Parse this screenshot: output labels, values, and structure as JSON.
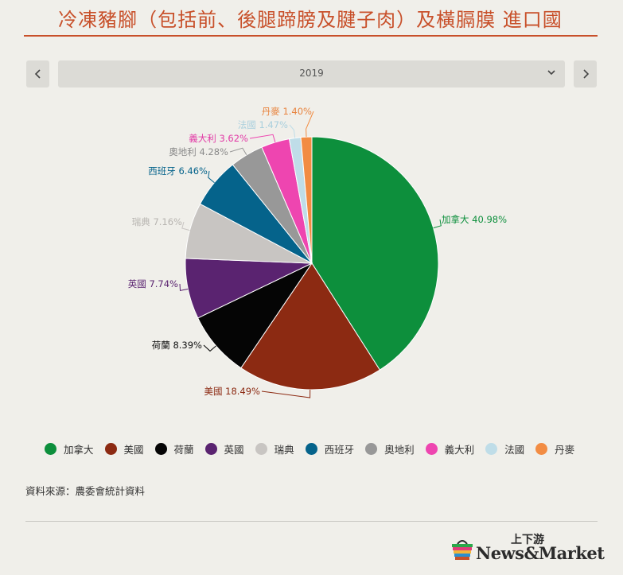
{
  "title": "冷凍豬腳（包括前、後腿蹄膀及腱子肉）及橫膈膜 進口國",
  "controls": {
    "prev_icon": "chevron-left-icon",
    "next_icon": "chevron-right-icon",
    "year_value": "2019",
    "dropdown_icon": "chevron-down-icon"
  },
  "chart_data": {
    "type": "pie",
    "title": "",
    "slices": [
      {
        "name": "加拿大",
        "value": 40.98,
        "label": "加拿大 40.98%",
        "color": "#0d8f3c",
        "label_color": "#0d8f3c"
      },
      {
        "name": "美國",
        "value": 18.49,
        "label": "美國 18.49%",
        "color": "#8c2a12",
        "label_color": "#8c2a12"
      },
      {
        "name": "荷蘭",
        "value": 8.39,
        "label": "荷蘭 8.39%",
        "color": "#050505",
        "label_color": "#111111"
      },
      {
        "name": "英國",
        "value": 7.74,
        "label": "英國 7.74%",
        "color": "#5a2370",
        "label_color": "#5a2370"
      },
      {
        "name": "瑞典",
        "value": 7.16,
        "label": "瑞典 7.16%",
        "color": "#c8c5c2",
        "label_color": "#b7b4b0"
      },
      {
        "name": "西班牙",
        "value": 6.46,
        "label": "西班牙 6.46%",
        "color": "#05638b",
        "label_color": "#05638b"
      },
      {
        "name": "奧地利",
        "value": 4.28,
        "label": "奧地利 4.28%",
        "color": "#989898",
        "label_color": "#8a8a8a"
      },
      {
        "name": "義大利",
        "value": 3.62,
        "label": "義大利 3.62%",
        "color": "#ee45b0",
        "label_color": "#e23aa6"
      },
      {
        "name": "法國",
        "value": 1.47,
        "label": "法國 1.47%",
        "color": "#bfdde8",
        "label_color": "#a9cfdd"
      },
      {
        "name": "丹麥",
        "value": 1.4,
        "label": "丹麥 1.40%",
        "color": "#f28c43",
        "label_color": "#e8843f"
      }
    ],
    "legend_position": "bottom"
  },
  "source": "資料來源：農委會統計資料",
  "logo": {
    "top_text": "上下游",
    "main_text": "News&Market",
    "icon": "basket-logo-icon"
  }
}
